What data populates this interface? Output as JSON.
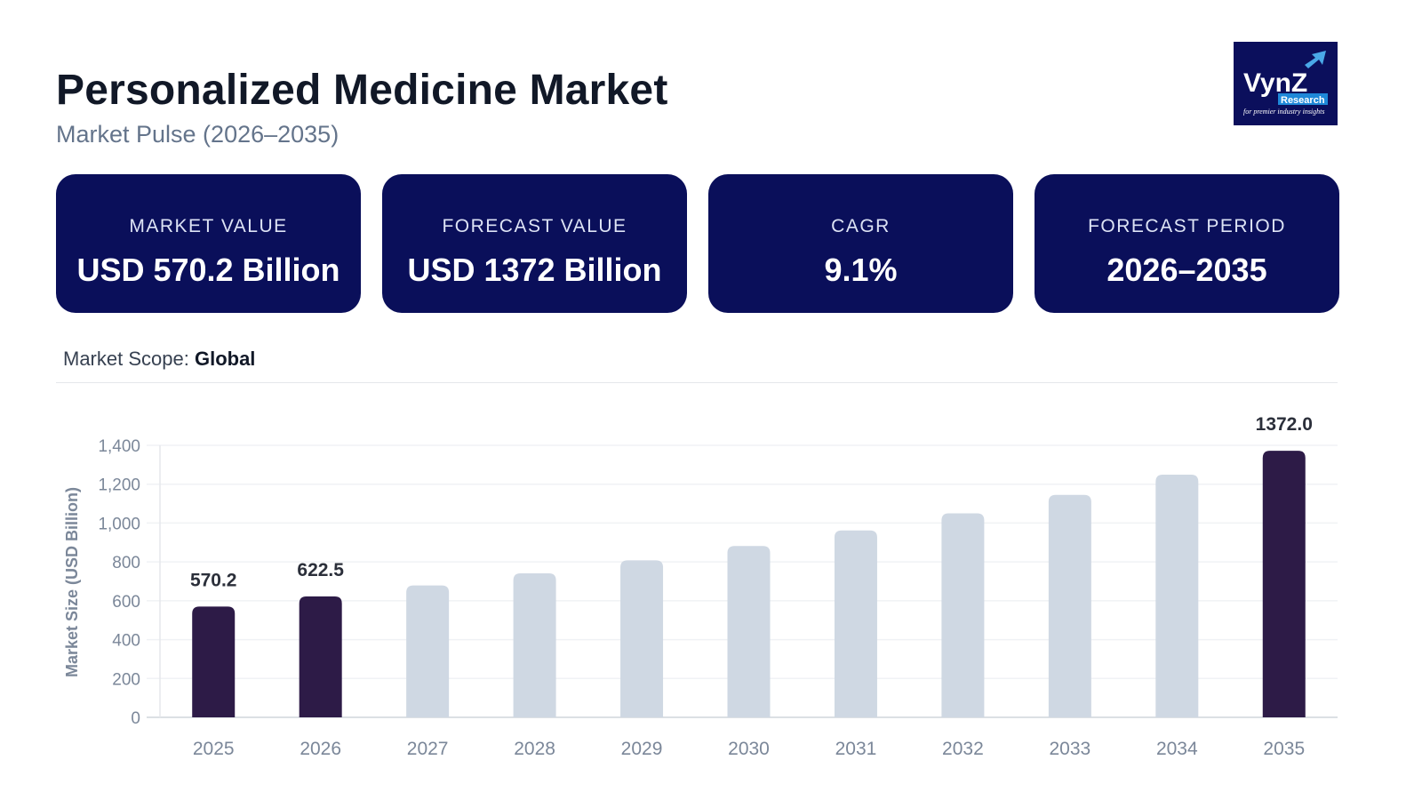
{
  "header": {
    "title": "Personalized Medicine Market",
    "subtitle": "Market Pulse (2026–2035)"
  },
  "logo": {
    "text": "VynZ",
    "sub": "Research",
    "tagline": "for premier industry insights"
  },
  "cards": [
    {
      "label": "MARKET VALUE",
      "value": "USD 570.2 Billion"
    },
    {
      "label": "FORECAST VALUE",
      "value": "USD 1372 Billion"
    },
    {
      "label": "CAGR",
      "value": "9.1%"
    },
    {
      "label": "FORECAST PERIOD",
      "value": "2026–2035"
    }
  ],
  "scope": {
    "label": "Market Scope:",
    "value": "Global"
  },
  "colors": {
    "card_bg": "#0a0f5a",
    "highlight_bar": "#2d1b47",
    "regular_bar": "#cfd8e3"
  },
  "chart_data": {
    "type": "bar",
    "title": "",
    "xlabel": "",
    "ylabel": "Market Size (USD Billion)",
    "ylim": [
      0,
      1400
    ],
    "yticks": [
      "0",
      "200",
      "400",
      "600",
      "800",
      "1,000",
      "1,200",
      "1,400"
    ],
    "grid": true,
    "categories": [
      "2025",
      "2026",
      "2027",
      "2028",
      "2029",
      "2030",
      "2031",
      "2032",
      "2033",
      "2034",
      "2035"
    ],
    "values": [
      570.2,
      622.5,
      679,
      741,
      808,
      882,
      962,
      1050,
      1145,
      1249,
      1372.0
    ],
    "highlighted": [
      true,
      true,
      false,
      false,
      false,
      false,
      false,
      false,
      false,
      false,
      true
    ],
    "data_labels": [
      "570.2",
      "622.5",
      "",
      "",
      "",
      "",
      "",
      "",
      "",
      "",
      "1372.0"
    ]
  }
}
